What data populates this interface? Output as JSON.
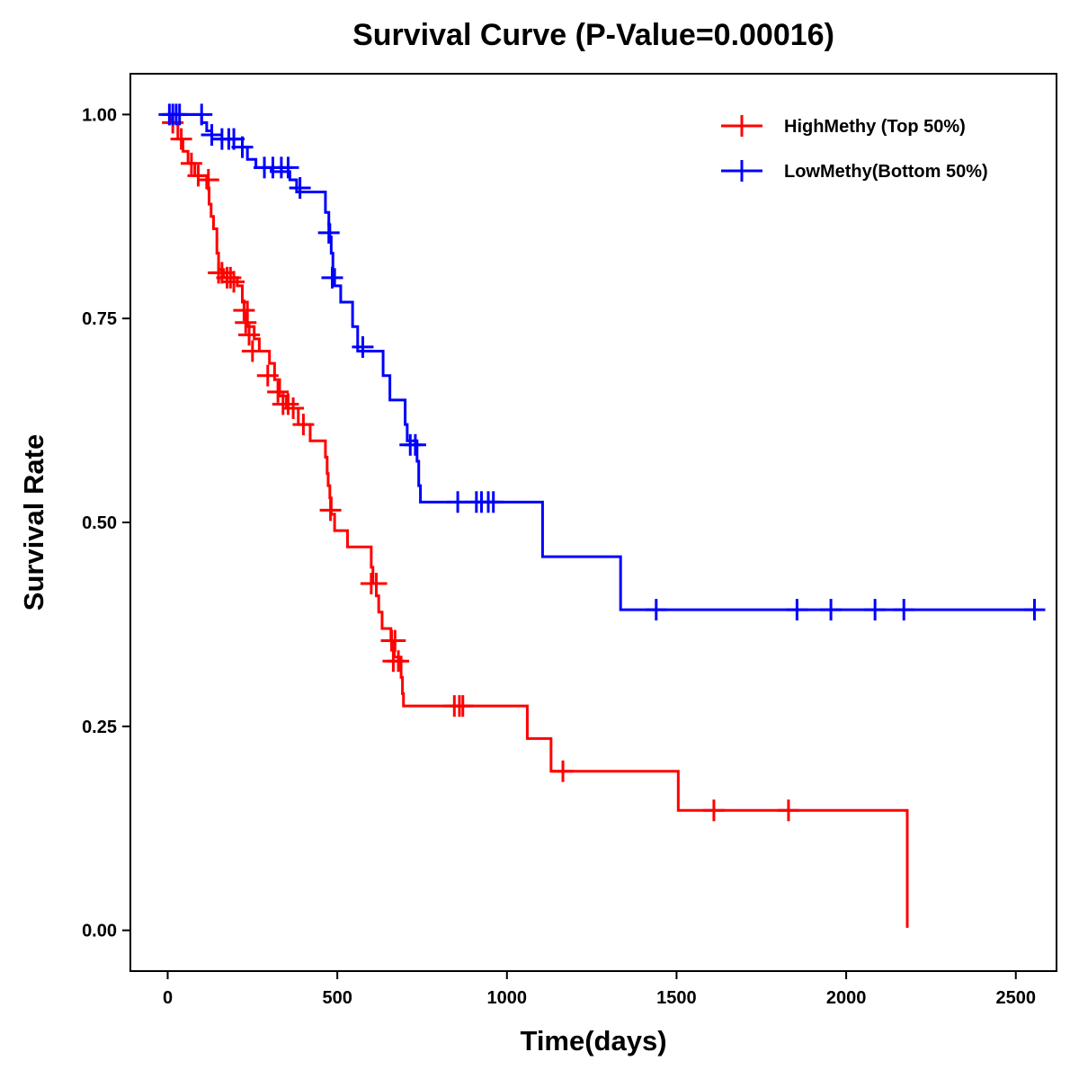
{
  "chart_data": {
    "type": "line",
    "subtype": "kaplan-meier",
    "title": "Survival Curve (P-Value=0.00016)",
    "xlabel": "Time(days)",
    "ylabel": "Survival Rate",
    "xlim": [
      -110,
      2620
    ],
    "ylim": [
      -0.05,
      1.05
    ],
    "xticks": [
      0,
      500,
      1000,
      1500,
      2000,
      2500
    ],
    "xtick_labels": [
      "0",
      "500",
      "1000",
      "1500",
      "2000",
      "2500"
    ],
    "yticks": [
      0,
      0.25,
      0.5,
      0.75,
      1.0
    ],
    "ytick_labels": [
      "0.00",
      "0.25",
      "0.50",
      "0.75",
      "1.00"
    ],
    "grid": false,
    "legend_position": "top-right",
    "series": [
      {
        "name": "HighMethy (Top 50%)",
        "color": "#ff0000",
        "steps": [
          [
            0,
            1.0
          ],
          [
            10,
            0.99
          ],
          [
            30,
            0.97
          ],
          [
            45,
            0.955
          ],
          [
            60,
            0.94
          ],
          [
            80,
            0.925
          ],
          [
            115,
            0.91
          ],
          [
            122,
            0.89
          ],
          [
            128,
            0.875
          ],
          [
            135,
            0.86
          ],
          [
            145,
            0.83
          ],
          [
            150,
            0.81
          ],
          [
            165,
            0.8
          ],
          [
            205,
            0.79
          ],
          [
            220,
            0.77
          ],
          [
            235,
            0.74
          ],
          [
            255,
            0.725
          ],
          [
            270,
            0.71
          ],
          [
            300,
            0.695
          ],
          [
            315,
            0.675
          ],
          [
            330,
            0.655
          ],
          [
            350,
            0.64
          ],
          [
            385,
            0.62
          ],
          [
            420,
            0.6
          ],
          [
            465,
            0.58
          ],
          [
            470,
            0.56
          ],
          [
            473,
            0.545
          ],
          [
            478,
            0.53
          ],
          [
            482,
            0.51
          ],
          [
            492,
            0.49
          ],
          [
            530,
            0.47
          ],
          [
            600,
            0.445
          ],
          [
            605,
            0.425
          ],
          [
            615,
            0.41
          ],
          [
            622,
            0.39
          ],
          [
            632,
            0.37
          ],
          [
            658,
            0.355
          ],
          [
            668,
            0.335
          ],
          [
            688,
            0.31
          ],
          [
            692,
            0.29
          ],
          [
            695,
            0.275
          ],
          [
            1060,
            0.235
          ],
          [
            1130,
            0.195
          ],
          [
            1505,
            0.147
          ],
          [
            2180,
            0.003
          ]
        ],
        "end_time": 2180,
        "censors": [
          [
            15,
            0.99
          ],
          [
            40,
            0.97
          ],
          [
            70,
            0.94
          ],
          [
            90,
            0.925
          ],
          [
            120,
            0.92
          ],
          [
            150,
            0.806
          ],
          [
            160,
            0.806
          ],
          [
            175,
            0.8
          ],
          [
            185,
            0.8
          ],
          [
            195,
            0.795
          ],
          [
            225,
            0.76
          ],
          [
            230,
            0.745
          ],
          [
            240,
            0.73
          ],
          [
            250,
            0.71
          ],
          [
            295,
            0.68
          ],
          [
            325,
            0.66
          ],
          [
            340,
            0.645
          ],
          [
            355,
            0.645
          ],
          [
            370,
            0.64
          ],
          [
            400,
            0.62
          ],
          [
            480,
            0.515
          ],
          [
            600,
            0.425
          ],
          [
            615,
            0.425
          ],
          [
            660,
            0.355
          ],
          [
            670,
            0.355
          ],
          [
            665,
            0.33
          ],
          [
            680,
            0.33
          ],
          [
            845,
            0.275
          ],
          [
            860,
            0.275
          ],
          [
            870,
            0.275
          ],
          [
            1165,
            0.195
          ],
          [
            1610,
            0.147
          ],
          [
            1830,
            0.147
          ]
        ]
      },
      {
        "name": "LowMethy(Bottom 50%)",
        "color": "#0000ff",
        "steps": [
          [
            0,
            1.0
          ],
          [
            100,
            0.99
          ],
          [
            115,
            0.98
          ],
          [
            130,
            0.97
          ],
          [
            220,
            0.96
          ],
          [
            235,
            0.945
          ],
          [
            260,
            0.935
          ],
          [
            305,
            0.93
          ],
          [
            360,
            0.92
          ],
          [
            380,
            0.905
          ],
          [
            465,
            0.88
          ],
          [
            475,
            0.865
          ],
          [
            478,
            0.85
          ],
          [
            482,
            0.83
          ],
          [
            487,
            0.81
          ],
          [
            492,
            0.79
          ],
          [
            510,
            0.77
          ],
          [
            545,
            0.74
          ],
          [
            560,
            0.71
          ],
          [
            635,
            0.68
          ],
          [
            655,
            0.65
          ],
          [
            700,
            0.62
          ],
          [
            706,
            0.6
          ],
          [
            735,
            0.575
          ],
          [
            740,
            0.545
          ],
          [
            745,
            0.525
          ],
          [
            1105,
            0.458
          ],
          [
            1335,
            0.393
          ]
        ],
        "end_time": 2560,
        "censors": [
          [
            5,
            1.0
          ],
          [
            15,
            1.0
          ],
          [
            25,
            1.0
          ],
          [
            35,
            1.0
          ],
          [
            100,
            1.0
          ],
          [
            130,
            0.975
          ],
          [
            160,
            0.97
          ],
          [
            180,
            0.97
          ],
          [
            195,
            0.97
          ],
          [
            220,
            0.96
          ],
          [
            285,
            0.935
          ],
          [
            310,
            0.935
          ],
          [
            335,
            0.935
          ],
          [
            355,
            0.935
          ],
          [
            390,
            0.91
          ],
          [
            475,
            0.855
          ],
          [
            485,
            0.8
          ],
          [
            575,
            0.715
          ],
          [
            715,
            0.595
          ],
          [
            730,
            0.595
          ],
          [
            855,
            0.525
          ],
          [
            910,
            0.525
          ],
          [
            925,
            0.525
          ],
          [
            945,
            0.525
          ],
          [
            960,
            0.525
          ],
          [
            1440,
            0.393
          ],
          [
            1855,
            0.393
          ],
          [
            1955,
            0.393
          ],
          [
            2085,
            0.393
          ],
          [
            2170,
            0.393
          ],
          [
            2555,
            0.393
          ]
        ]
      }
    ]
  }
}
